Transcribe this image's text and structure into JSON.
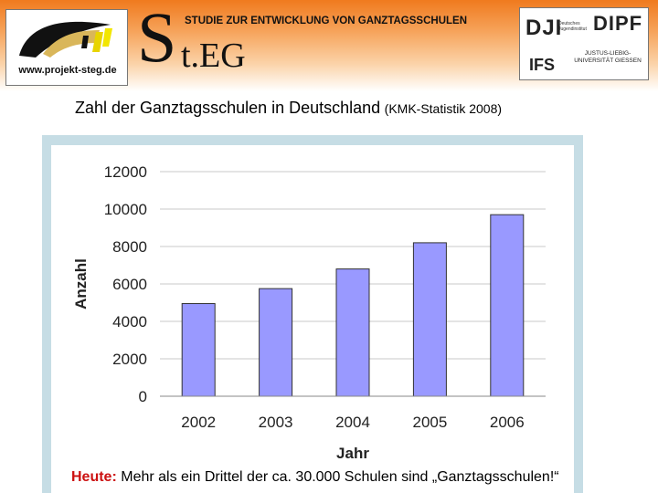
{
  "header": {
    "project_url": "www.projekt-steg.de",
    "steg_initial": "S",
    "steg_rest": "t.EG",
    "study_title": "STUDIE ZUR ENTWICKLUNG VON GANZTAGSSCHULEN",
    "partners": {
      "dji": "DJI",
      "dji_sub": "Deutsches Jugendinstitut",
      "dipf": "DIPF",
      "ifs": "IFS",
      "uni": "JUSTUS-LIEBIG-UNIVERSITÄT GIESSEN"
    }
  },
  "title": {
    "main": "Zahl der Ganztagsschulen in Deutschland",
    "source": "(KMK-Statistik 2008)"
  },
  "chart_data": {
    "type": "bar",
    "categories": [
      "2002",
      "2003",
      "2004",
      "2005",
      "2006"
    ],
    "values": [
      4950,
      5750,
      6800,
      8200,
      9700
    ],
    "xlabel": "Jahr",
    "ylabel": "Anzahl",
    "ylim": [
      0,
      12000
    ],
    "yticks": [
      0,
      2000,
      4000,
      6000,
      8000,
      10000,
      12000
    ],
    "ytick_labels": [
      "0",
      "2000",
      "4000",
      "6000",
      "8000",
      "10000",
      "12000"
    ],
    "grid": true,
    "legend": "none",
    "bar_color": "#9999ff"
  },
  "footer": {
    "highlight": "Heute:",
    "text": "Mehr als ein Drittel der ca. 30.000 Schulen sind „Ganztagsschulen!“"
  },
  "colors": {
    "header_orange": "#f07a1e",
    "frame": "#c6dde5",
    "highlight": "#cc1111"
  }
}
